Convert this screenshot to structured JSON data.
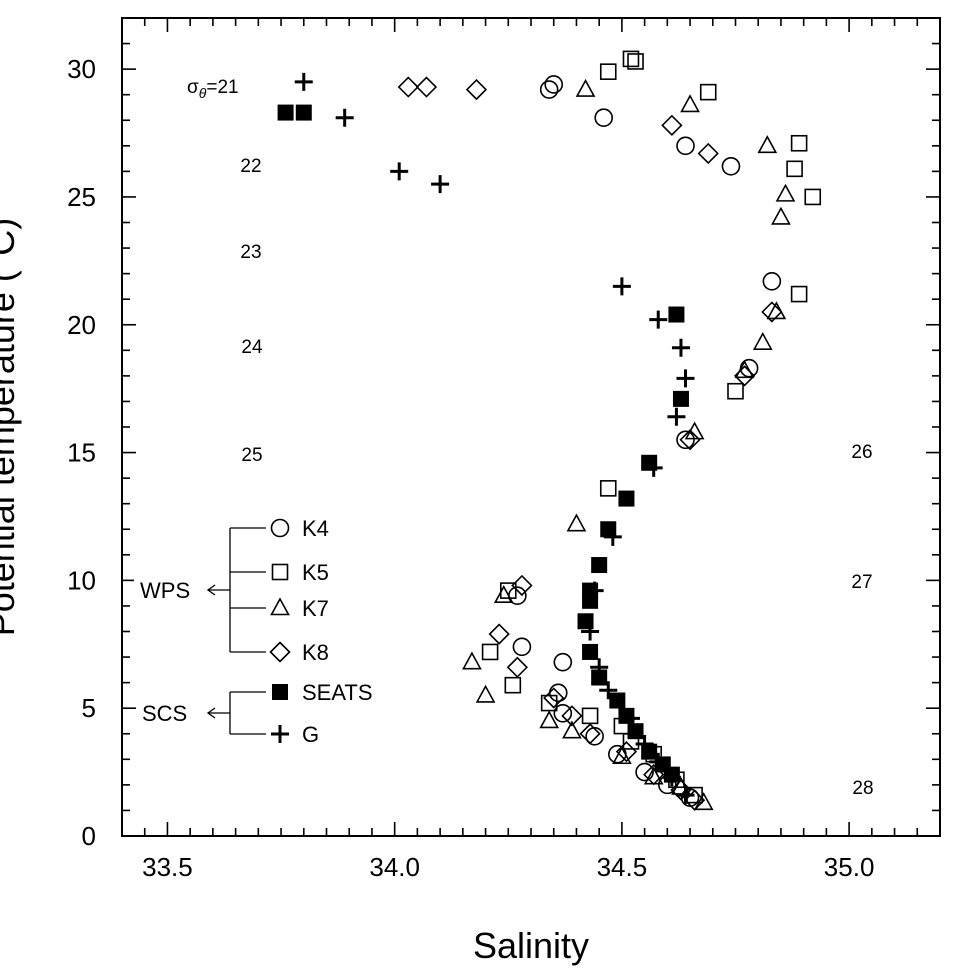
{
  "chart_data": {
    "type": "scatter",
    "xlabel": "Salinity",
    "ylabel": "Potential temperature (°C)",
    "xlim": [
      33.4,
      35.2
    ],
    "ylim": [
      0,
      32
    ],
    "xticks": [
      33.5,
      34.0,
      34.5,
      35.0
    ],
    "xtick_labels": [
      "33.5",
      "34.0",
      "34.5",
      "35.0"
    ],
    "yticks": [
      0,
      5,
      10,
      15,
      20,
      25,
      30
    ],
    "ytick_labels": [
      "0",
      "5",
      "10",
      "15",
      "20",
      "25",
      "30"
    ],
    "grid": false,
    "contours": [
      {
        "sigma": 21,
        "label": "=21",
        "symbol": "σθ"
      },
      {
        "sigma": 22,
        "label": "22"
      },
      {
        "sigma": 23,
        "label": "23"
      },
      {
        "sigma": 24,
        "label": "24"
      },
      {
        "sigma": 25,
        "label": "25"
      },
      {
        "sigma": 26,
        "label": "26"
      },
      {
        "sigma": 27,
        "label": "27"
      },
      {
        "sigma": 28,
        "label": "28"
      }
    ],
    "legend_groups": [
      {
        "label": "WPS",
        "members": [
          "K4",
          "K5",
          "K7",
          "K8"
        ]
      },
      {
        "label": "SCS",
        "members": [
          "SEATS",
          "G"
        ]
      }
    ],
    "series": [
      {
        "name": "K4",
        "marker": "circle-open",
        "points": [
          [
            34.34,
            29.2
          ],
          [
            34.35,
            29.4
          ],
          [
            34.46,
            28.1
          ],
          [
            34.64,
            27.0
          ],
          [
            34.74,
            26.2
          ],
          [
            34.83,
            21.7
          ],
          [
            34.78,
            18.3
          ],
          [
            34.64,
            15.5
          ],
          [
            34.27,
            9.4
          ],
          [
            34.28,
            7.4
          ],
          [
            34.37,
            6.8
          ],
          [
            34.36,
            5.6
          ],
          [
            34.37,
            4.8
          ],
          [
            34.44,
            3.9
          ],
          [
            34.49,
            3.2
          ],
          [
            34.55,
            2.5
          ],
          [
            34.6,
            2.0
          ],
          [
            34.65,
            1.5
          ]
        ]
      },
      {
        "name": "K5",
        "marker": "square-open",
        "points": [
          [
            34.47,
            29.9
          ],
          [
            34.52,
            30.4
          ],
          [
            34.53,
            30.3
          ],
          [
            34.69,
            29.1
          ],
          [
            34.89,
            27.1
          ],
          [
            34.88,
            26.1
          ],
          [
            34.92,
            25.0
          ],
          [
            34.89,
            21.2
          ],
          [
            34.75,
            17.4
          ],
          [
            34.47,
            13.6
          ],
          [
            34.25,
            9.6
          ],
          [
            34.21,
            7.2
          ],
          [
            34.26,
            5.9
          ],
          [
            34.34,
            5.2
          ],
          [
            34.43,
            4.7
          ],
          [
            34.5,
            4.3
          ],
          [
            34.52,
            3.7
          ],
          [
            34.57,
            3.2
          ],
          [
            34.62,
            2.2
          ],
          [
            34.66,
            1.6
          ]
        ]
      },
      {
        "name": "K7",
        "marker": "triangle-open",
        "points": [
          [
            34.42,
            29.2
          ],
          [
            34.65,
            28.6
          ],
          [
            34.82,
            27.0
          ],
          [
            34.86,
            25.1
          ],
          [
            34.85,
            24.2
          ],
          [
            34.84,
            20.5
          ],
          [
            34.81,
            19.3
          ],
          [
            34.77,
            18.2
          ],
          [
            34.66,
            15.8
          ],
          [
            34.4,
            12.2
          ],
          [
            34.24,
            9.4
          ],
          [
            34.17,
            6.8
          ],
          [
            34.2,
            5.5
          ],
          [
            34.34,
            4.5
          ],
          [
            34.39,
            4.1
          ],
          [
            34.5,
            3.1
          ],
          [
            34.57,
            2.3
          ],
          [
            34.63,
            1.9
          ],
          [
            34.68,
            1.3
          ]
        ]
      },
      {
        "name": "K8",
        "marker": "diamond-open",
        "points": [
          [
            34.03,
            29.3
          ],
          [
            34.07,
            29.3
          ],
          [
            34.18,
            29.2
          ],
          [
            34.61,
            27.8
          ],
          [
            34.69,
            26.7
          ],
          [
            34.83,
            20.5
          ],
          [
            34.77,
            18.0
          ],
          [
            34.65,
            15.5
          ],
          [
            34.28,
            9.8
          ],
          [
            34.23,
            7.9
          ],
          [
            34.27,
            6.6
          ],
          [
            34.35,
            5.4
          ],
          [
            34.39,
            4.7
          ],
          [
            34.43,
            4.0
          ],
          [
            34.51,
            3.3
          ],
          [
            34.57,
            2.4
          ],
          [
            34.63,
            1.8
          ],
          [
            34.66,
            1.4
          ]
        ]
      },
      {
        "name": "SEATS",
        "marker": "square-filled",
        "points": [
          [
            33.76,
            28.3
          ],
          [
            33.8,
            28.3
          ],
          [
            34.62,
            20.4
          ],
          [
            34.63,
            17.1
          ],
          [
            34.56,
            14.6
          ],
          [
            34.51,
            13.2
          ],
          [
            34.47,
            12.0
          ],
          [
            34.45,
            10.6
          ],
          [
            34.43,
            9.2
          ],
          [
            34.43,
            9.6
          ],
          [
            34.42,
            8.4
          ],
          [
            34.43,
            7.2
          ],
          [
            34.45,
            6.2
          ],
          [
            34.49,
            5.3
          ],
          [
            34.51,
            4.7
          ],
          [
            34.53,
            4.1
          ],
          [
            34.56,
            3.3
          ],
          [
            34.59,
            2.8
          ],
          [
            34.61,
            2.4
          ]
        ]
      },
      {
        "name": "G",
        "marker": "plus",
        "points": [
          [
            33.8,
            29.5
          ],
          [
            33.89,
            28.1
          ],
          [
            34.01,
            26.0
          ],
          [
            34.1,
            25.5
          ],
          [
            34.5,
            21.5
          ],
          [
            34.58,
            20.2
          ],
          [
            34.63,
            19.1
          ],
          [
            34.64,
            17.9
          ],
          [
            34.62,
            16.4
          ],
          [
            34.57,
            14.4
          ],
          [
            34.48,
            11.7
          ],
          [
            34.44,
            9.6
          ],
          [
            34.43,
            8.0
          ],
          [
            34.45,
            6.6
          ],
          [
            34.47,
            5.7
          ],
          [
            34.52,
            4.6
          ],
          [
            34.55,
            3.6
          ],
          [
            34.58,
            2.9
          ],
          [
            34.61,
            2.3
          ],
          [
            34.64,
            1.6
          ]
        ]
      }
    ]
  }
}
